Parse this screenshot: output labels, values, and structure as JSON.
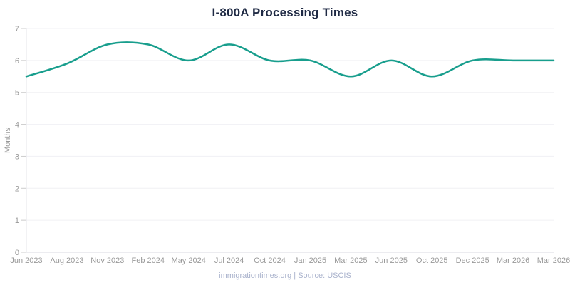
{
  "footer": {
    "text": "immigrationtimes.org | Source: USCIS"
  },
  "colors": {
    "line": "#189e8d",
    "title_text": "#1f2a44",
    "axis_text": "#999999",
    "footer_text": "#a9b2cc",
    "gridline": "#f0f0f4",
    "axis_line": "#d9dae0",
    "axis_border": "#e4e4ea",
    "tick_mark": "#cccccc"
  },
  "chart_data": {
    "type": "line",
    "title": "I-800A Processing Times",
    "xlabel": "",
    "ylabel": "Months",
    "ylim": [
      0,
      7
    ],
    "yticks": [
      0,
      1,
      2,
      3,
      4,
      5,
      6,
      7
    ],
    "categories": [
      "Jun 2023",
      "Aug 2023",
      "Nov 2023",
      "Feb 2024",
      "May 2024",
      "Jul 2024",
      "Oct 2024",
      "Jan 2025",
      "Mar 2025",
      "Jun 2025",
      "Oct 2025",
      "Dec 2025",
      "Mar 2026",
      "Mar 2026"
    ],
    "series": [
      {
        "name": "I-800A",
        "color": "#189e8d",
        "values": [
          5.5,
          5.9,
          6.5,
          6.5,
          6.0,
          6.5,
          6.0,
          6.0,
          5.5,
          6.0,
          5.5,
          6.0,
          6.0,
          6.0
        ]
      }
    ],
    "grid": true,
    "legend": "none",
    "curve": "smooth"
  }
}
